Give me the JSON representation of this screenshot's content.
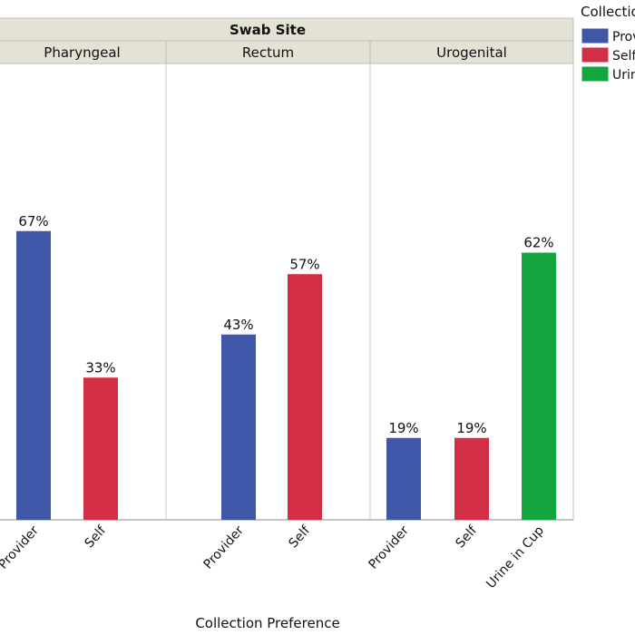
{
  "chart_data": {
    "type": "bar",
    "title": "",
    "header": "Swab Site",
    "xlabel": "Collection Preference",
    "ylabel": "",
    "ylim": [
      0,
      100
    ],
    "grid": false,
    "panels": [
      {
        "name": "Pharyngeal",
        "categories": [
          "Provider",
          "Self"
        ],
        "values": [
          67,
          33
        ],
        "labels": [
          "67%",
          "33%"
        ]
      },
      {
        "name": "Rectum",
        "categories": [
          "Provider",
          "Self"
        ],
        "values": [
          43,
          57
        ],
        "labels": [
          "43%",
          "57%"
        ]
      },
      {
        "name": "Urogenital",
        "categories": [
          "Provider",
          "Self",
          "Urine in Cup"
        ],
        "values": [
          19,
          19,
          62
        ],
        "labels": [
          "19%",
          "19%",
          "62%"
        ]
      }
    ],
    "legend": {
      "title": "Collectio",
      "placement": "top-right",
      "entries": [
        {
          "label": "Prov",
          "color": "#3f57a7"
        },
        {
          "label": "Self",
          "color": "#d22f47"
        },
        {
          "label": "Urin",
          "color": "#16a640"
        }
      ]
    }
  },
  "colors": {
    "Provider": "#3f57a7",
    "Self": "#d22f47",
    "Urine in Cup": "#16a640",
    "header_bg": "#e3e2d4",
    "frame": "#bdbdbd"
  }
}
